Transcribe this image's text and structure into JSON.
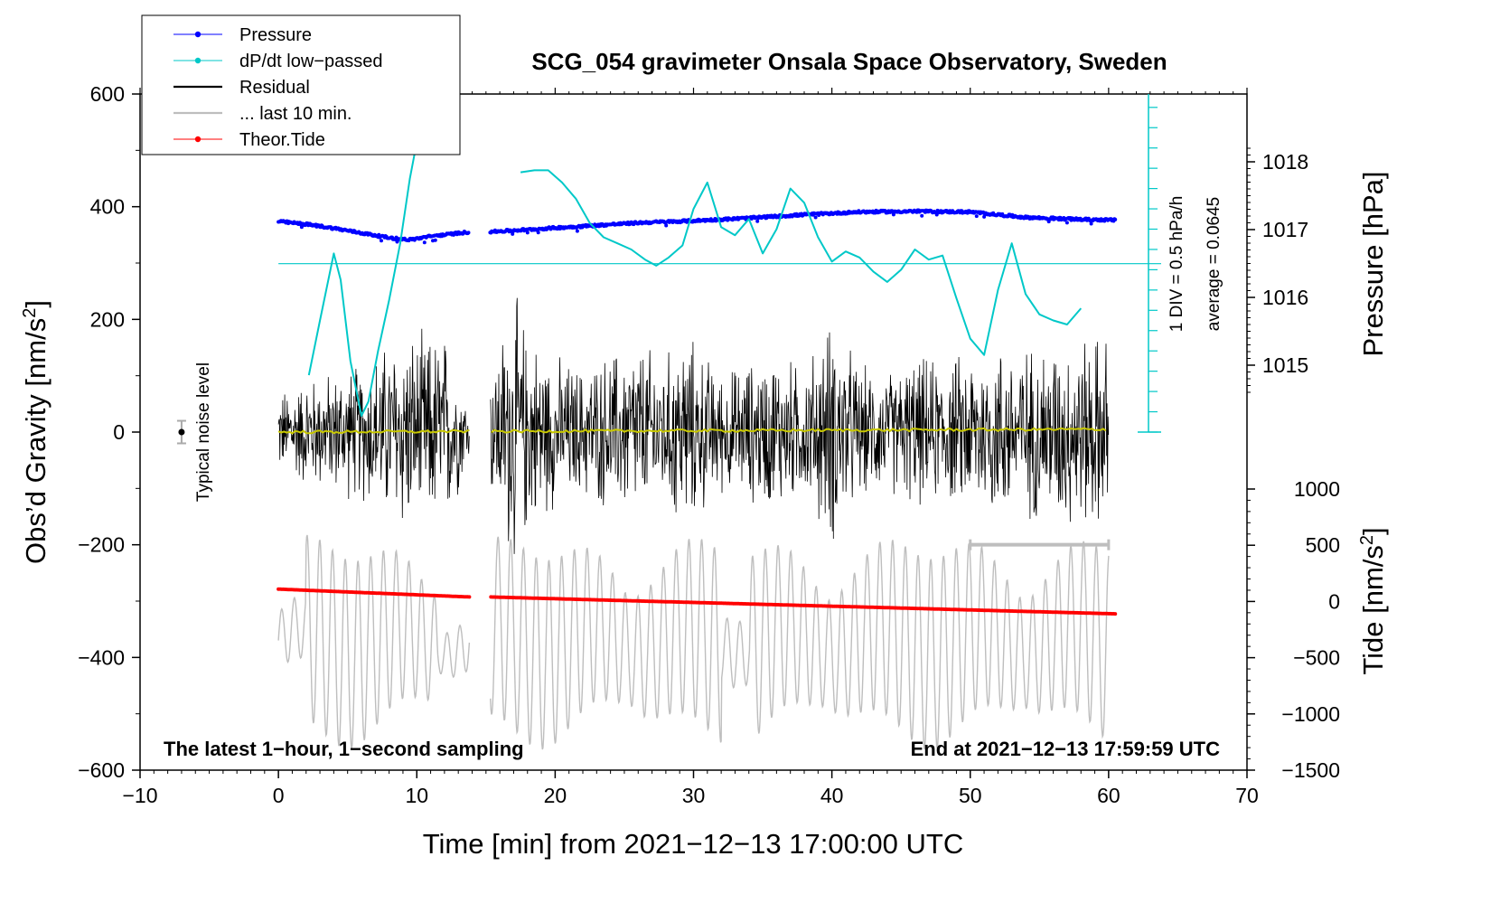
{
  "chart_data": {
    "type": "line",
    "title": "SCG_054 gravimeter Onsala Space Observatory, Sweden",
    "xlabel": "Time [min] from 2021−12−13 17:00:00 UTC",
    "ylabel_left": "Obs’d Gravity [nm/s",
    "ylabel_left_sup": "2",
    "ylabel_left_close": "]",
    "ylabel_right_pressure": "Pressure [hPa]",
    "ylabel_right_tide": "Tide [nm/s",
    "ylabel_right_tide_sup": "2",
    "ylabel_right_tide_close": "]",
    "xlim": [
      -10,
      70
    ],
    "ylim_left": [
      -600,
      600
    ],
    "ylim_pressure_visible": [
      1014.5,
      1018.3
    ],
    "ylim_tide": [
      -1500,
      1000
    ],
    "x_ticks": [
      -10,
      0,
      10,
      20,
      30,
      40,
      50,
      60,
      70
    ],
    "x_tick_labels": [
      "−10",
      "0",
      "10",
      "20",
      "30",
      "40",
      "50",
      "60",
      "70"
    ],
    "y_left_ticks": [
      600,
      400,
      200,
      0,
      -200,
      -400,
      -600
    ],
    "y_left_tick_labels": [
      "600",
      "400",
      "200",
      "0",
      "−200",
      "−400",
      "−600"
    ],
    "pressure_ticks": [
      1018,
      1017,
      1016,
      1015
    ],
    "pressure_tick_labels": [
      "1018",
      "1017",
      "1016",
      "1015"
    ],
    "tide_ticks": [
      1000,
      500,
      0,
      -500,
      -1000,
      -1500
    ],
    "tide_tick_labels": [
      "1000",
      "500",
      "0",
      "−500",
      "−1000",
      "−1500"
    ],
    "legend": {
      "position": "top-left",
      "entries": [
        {
          "label": "Pressure",
          "color": "#0000ff",
          "style": "line-dot"
        },
        {
          "label": "dP/dt low−passed",
          "color": "#00c8c8",
          "style": "line-dot"
        },
        {
          "label": "Residual",
          "color": "#000000",
          "style": "line"
        },
        {
          "label": "... last 10 min.",
          "color": "#bebebe",
          "style": "line"
        },
        {
          "label": "Theor.Tide",
          "color": "#ff0000",
          "style": "line-dot"
        }
      ]
    },
    "annotations": {
      "bottom_left": "The latest 1−hour, 1−second sampling",
      "bottom_right": "End at 2021−12−13 17:59:59 UTC",
      "noise_label": "Typical noise level",
      "noise_bar": {
        "x": -7,
        "y": 0,
        "err": 20
      },
      "dpdt_scale": "1 DIV = 0.5 hPa/h",
      "dpdt_average": "average = 0.0645",
      "last10_bar_x": [
        50,
        60
      ],
      "last10_bar_y": -200
    },
    "colors": {
      "pressure": "#0000ff",
      "dpdt": "#00c8c8",
      "residual": "#000000",
      "last10": "#bebebe",
      "tide": "#ff0000",
      "smoothed_residual": "#c8c800"
    },
    "data_gap_min": [
      13.8,
      15.3
    ],
    "series": [
      {
        "name": "Pressure",
        "axis": "pressure_hPa",
        "x": [
          0,
          2,
          4,
          6,
          8,
          9.5,
          11,
          14,
          15.5,
          18,
          22,
          26,
          30,
          34,
          38,
          42,
          46,
          50,
          52,
          54,
          58,
          60.5
        ],
        "y": [
          1017.12,
          1017.08,
          1017.02,
          1016.95,
          1016.88,
          1016.85,
          1016.9,
          1016.97,
          1016.97,
          1017.0,
          1017.05,
          1017.1,
          1017.13,
          1017.17,
          1017.22,
          1017.26,
          1017.27,
          1017.26,
          1017.22,
          1017.18,
          1017.15,
          1017.14
        ]
      },
      {
        "name": "dP/dt low-passed",
        "axis": "dpdt_div",
        "baseline_div": 0,
        "average_div": 8.3,
        "x": [
          2.2,
          3.0,
          4.0,
          4.5,
          5.2,
          6.0,
          6.5,
          7.2,
          8.0,
          8.8,
          9.5,
          10.2,
          10.8,
          11.3,
          null,
          17.5,
          18.5,
          19.5,
          20.5,
          21.5,
          22.5,
          23.5,
          24.5,
          25.5,
          26.5,
          27.3,
          28.2,
          29.2,
          30.0,
          31.0,
          32.0,
          33.0,
          34.0,
          35.0,
          36.0,
          37.0,
          38.0,
          39.0,
          40.0,
          41.0,
          42.0,
          43.0,
          44.0,
          45.0,
          46.0,
          47.0,
          48.0,
          49.0,
          50.0,
          51.0,
          52.0,
          53.0,
          54.0,
          55.0,
          56.0,
          57.0,
          58.0
        ],
        "y": [
          2.8,
          5.5,
          8.8,
          7.5,
          3.5,
          0.8,
          1.5,
          4.0,
          6.5,
          9.3,
          12.5,
          15.0,
          16.5,
          16.3,
          null,
          12.8,
          12.9,
          12.9,
          12.3,
          11.5,
          10.3,
          9.6,
          9.3,
          9.0,
          8.5,
          8.2,
          8.6,
          9.2,
          11.0,
          12.3,
          10.1,
          9.7,
          10.5,
          8.8,
          10.0,
          12.0,
          11.3,
          9.6,
          8.4,
          8.9,
          8.6,
          7.9,
          7.4,
          8.0,
          9.0,
          8.5,
          8.7,
          6.6,
          4.6,
          3.8,
          7.0,
          9.3,
          6.8,
          5.8,
          5.5,
          5.3,
          6.1
        ]
      },
      {
        "name": "Residual",
        "axis": "gravity_nm_s2",
        "description": "high-frequency noise centered on 0",
        "envelope_x": [
          0,
          2,
          4,
          6,
          8,
          9,
          10,
          12,
          13.8,
          15.3,
          17,
          18,
          20,
          22,
          24,
          26,
          28,
          29,
          30,
          32,
          34,
          36,
          38,
          40,
          42,
          44,
          46,
          48,
          50,
          52,
          54,
          56,
          58,
          60
        ],
        "envelope_amp": [
          80,
          110,
          120,
          140,
          180,
          210,
          190,
          200,
          60,
          120,
          280,
          200,
          150,
          130,
          160,
          180,
          150,
          200,
          180,
          120,
          140,
          160,
          130,
          230,
          130,
          120,
          150,
          140,
          160,
          180,
          170,
          180,
          190,
          200
        ]
      },
      {
        "name": "Residual smoothed",
        "axis": "gravity_nm_s2",
        "x": [
          0,
          60
        ],
        "y": [
          0,
          5
        ]
      },
      {
        "name": "... last 10 min.",
        "axis": "gravity_nm_s2",
        "description": "oscillating grey trace, center about -370 nm/s2, amplitude about 170",
        "center": -370,
        "amplitude": 170
      },
      {
        "name": "Theor.Tide",
        "axis": "tide_nm_s2",
        "x": [
          0,
          13.8,
          15.3,
          60.5
        ],
        "y": [
          110,
          40,
          40,
          -110
        ]
      }
    ]
  }
}
